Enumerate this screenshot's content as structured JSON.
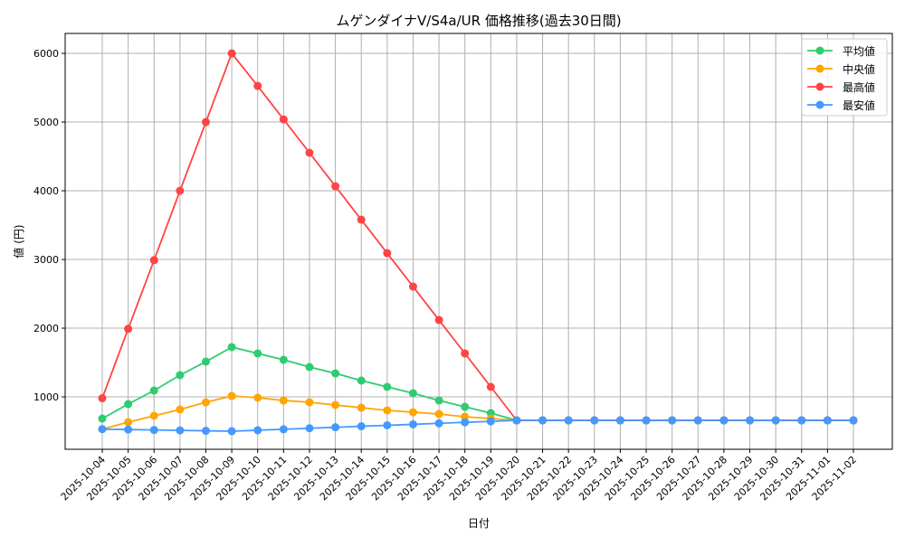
{
  "chart_data": {
    "type": "line",
    "title": "ムゲンダイナV/S4a/UR 価格推移(過去30日間)",
    "xlabel": "日付",
    "ylabel": "値 (円)",
    "ylim": [
      237,
      6290
    ],
    "yticks": [
      1000,
      2000,
      3000,
      4000,
      5000,
      6000
    ],
    "grid": true,
    "legend_position": "top-right",
    "x": [
      "2025-10-04",
      "2025-10-05",
      "2025-10-06",
      "2025-10-07",
      "2025-10-08",
      "2025-10-09",
      "2025-10-10",
      "2025-10-11",
      "2025-10-12",
      "2025-10-13",
      "2025-10-14",
      "2025-10-15",
      "2025-10-16",
      "2025-10-17",
      "2025-10-18",
      "2025-10-19",
      "2025-10-20",
      "2025-10-21",
      "2025-10-22",
      "2025-10-23",
      "2025-10-24",
      "2025-10-25",
      "2025-10-26",
      "2025-10-27",
      "2025-10-28",
      "2025-10-29",
      "2025-10-30",
      "2025-10-31",
      "2025-11-01",
      "2025-11-02"
    ],
    "series": [
      {
        "name": "平均値",
        "color": "#2ecc71",
        "values": [
          684,
          895,
          1092,
          1316,
          1513,
          1724,
          1632,
          1539,
          1434,
          1342,
          1237,
          1145,
          1053,
          947,
          855,
          763,
          658,
          658,
          658,
          658,
          658,
          658,
          658,
          658,
          658,
          658,
          658,
          658,
          658,
          658
        ]
      },
      {
        "name": "中央値",
        "color": "#ffa500",
        "values": [
          530,
          632,
          724,
          816,
          921,
          1013,
          987,
          947,
          921,
          882,
          842,
          803,
          776,
          750,
          711,
          684,
          658,
          658,
          658,
          658,
          658,
          658,
          658,
          658,
          658,
          658,
          658,
          658,
          658,
          658
        ]
      },
      {
        "name": "最高値",
        "color": "#ff4444",
        "values": [
          980,
          1990,
          2990,
          4000,
          5000,
          6000,
          5526,
          5039,
          4553,
          4066,
          3579,
          3092,
          2605,
          2118,
          1632,
          1145,
          658,
          658,
          658,
          658,
          658,
          658,
          658,
          658,
          658,
          658,
          658,
          658,
          658,
          658
        ]
      },
      {
        "name": "最安値",
        "color": "#4499ff",
        "values": [
          530,
          524,
          518,
          512,
          506,
          500,
          514,
          528,
          543,
          557,
          572,
          586,
          600,
          615,
          629,
          643,
          658,
          658,
          658,
          658,
          658,
          658,
          658,
          658,
          658,
          658,
          658,
          658,
          658,
          658
        ]
      }
    ]
  }
}
